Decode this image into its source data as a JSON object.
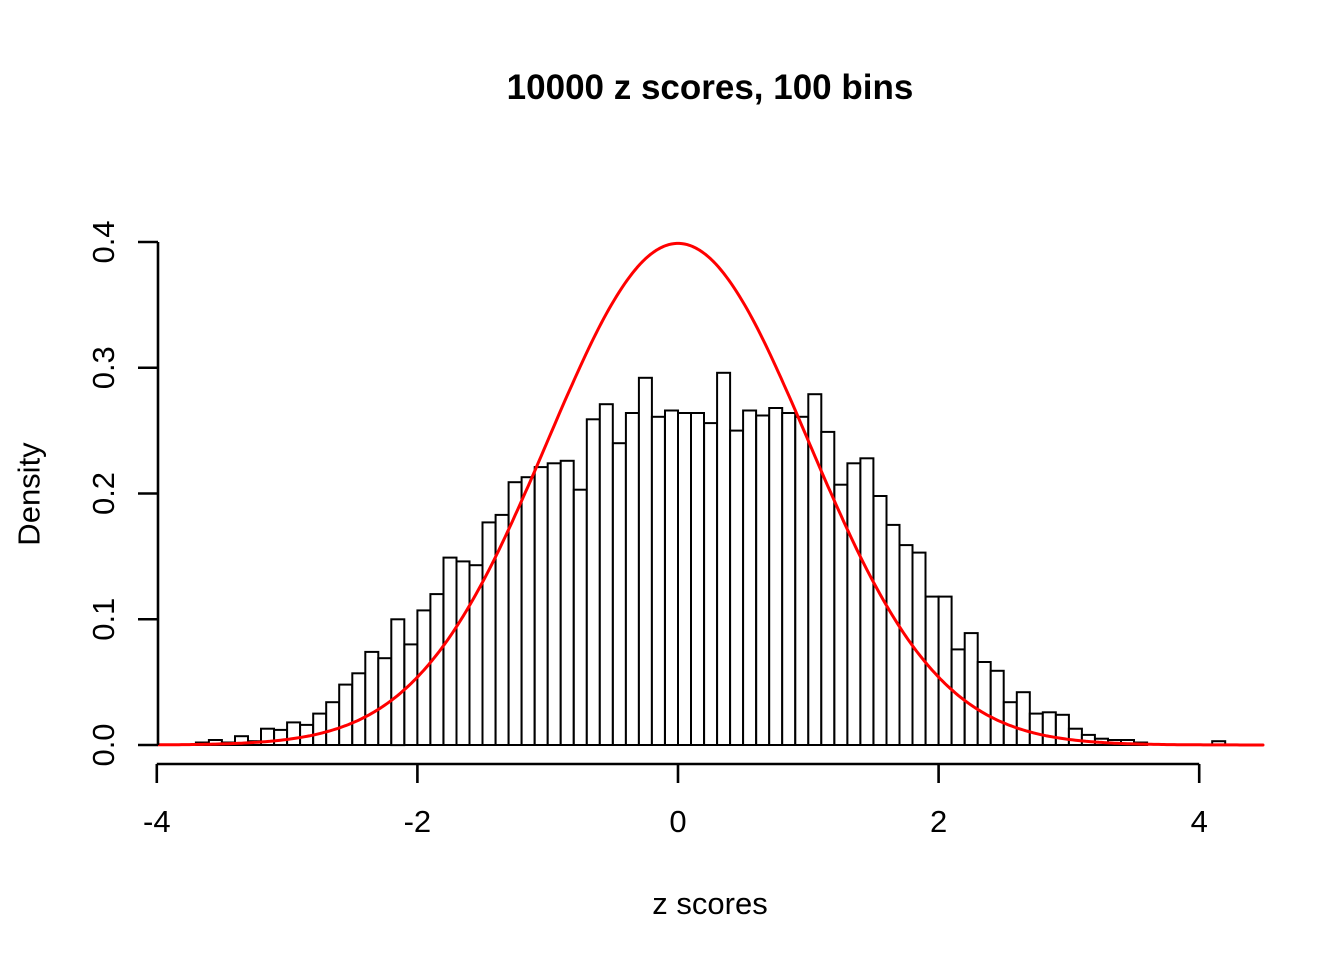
{
  "chart_data": {
    "type": "bar",
    "subtype": "histogram-with-density-curve",
    "title": "10000 z scores, 100 bins",
    "xlabel": "z scores",
    "ylabel": "Density",
    "x_tick_labels": [
      "-4",
      "-2",
      "0",
      "2",
      "4"
    ],
    "x_tick_values": [
      -4,
      -2,
      0,
      2,
      4
    ],
    "y_tick_labels": [
      "0.0",
      "0.1",
      "0.2",
      "0.3",
      "0.4"
    ],
    "y_tick_values": [
      0.0,
      0.1,
      0.2,
      0.3,
      0.4
    ],
    "xlim": [
      -3.99,
      4.49
    ],
    "ylim": [
      0,
      0.4
    ],
    "grid": "off",
    "bin_start": -3.7,
    "bin_width": 0.1,
    "densities": [
      0.002,
      0.004,
      0.002,
      0.007,
      0.003,
      0.013,
      0.012,
      0.018,
      0.016,
      0.025,
      0.034,
      0.048,
      0.057,
      0.074,
      0.069,
      0.1,
      0.08,
      0.107,
      0.12,
      0.149,
      0.146,
      0.143,
      0.177,
      0.183,
      0.209,
      0.213,
      0.221,
      0.224,
      0.226,
      0.203,
      0.259,
      0.271,
      0.24,
      0.264,
      0.292,
      0.261,
      0.266,
      0.264,
      0.264,
      0.256,
      0.296,
      0.25,
      0.266,
      0.262,
      0.268,
      0.264,
      0.261,
      0.279,
      0.249,
      0.207,
      0.224,
      0.228,
      0.198,
      0.175,
      0.159,
      0.153,
      0.118,
      0.118,
      0.076,
      0.089,
      0.066,
      0.059,
      0.034,
      0.042,
      0.025,
      0.026,
      0.024,
      0.013,
      0.008,
      0.005,
      0.004,
      0.004,
      0.002,
      0,
      0,
      0,
      0,
      0,
      0.003
    ],
    "overlay_curve": {
      "name": "standard-normal-density",
      "formula": "y = (1/sqrt(2*pi)) * exp(-z^2/2)",
      "peak_density": 0.3989,
      "color": "#FF0000",
      "range": [
        -3.99,
        4.49
      ]
    },
    "bar_fill": "#FFFFFF",
    "bar_stroke": "#000000",
    "axis_color": "#000000",
    "text_color": "#000000",
    "background": "#FFFFFF"
  }
}
